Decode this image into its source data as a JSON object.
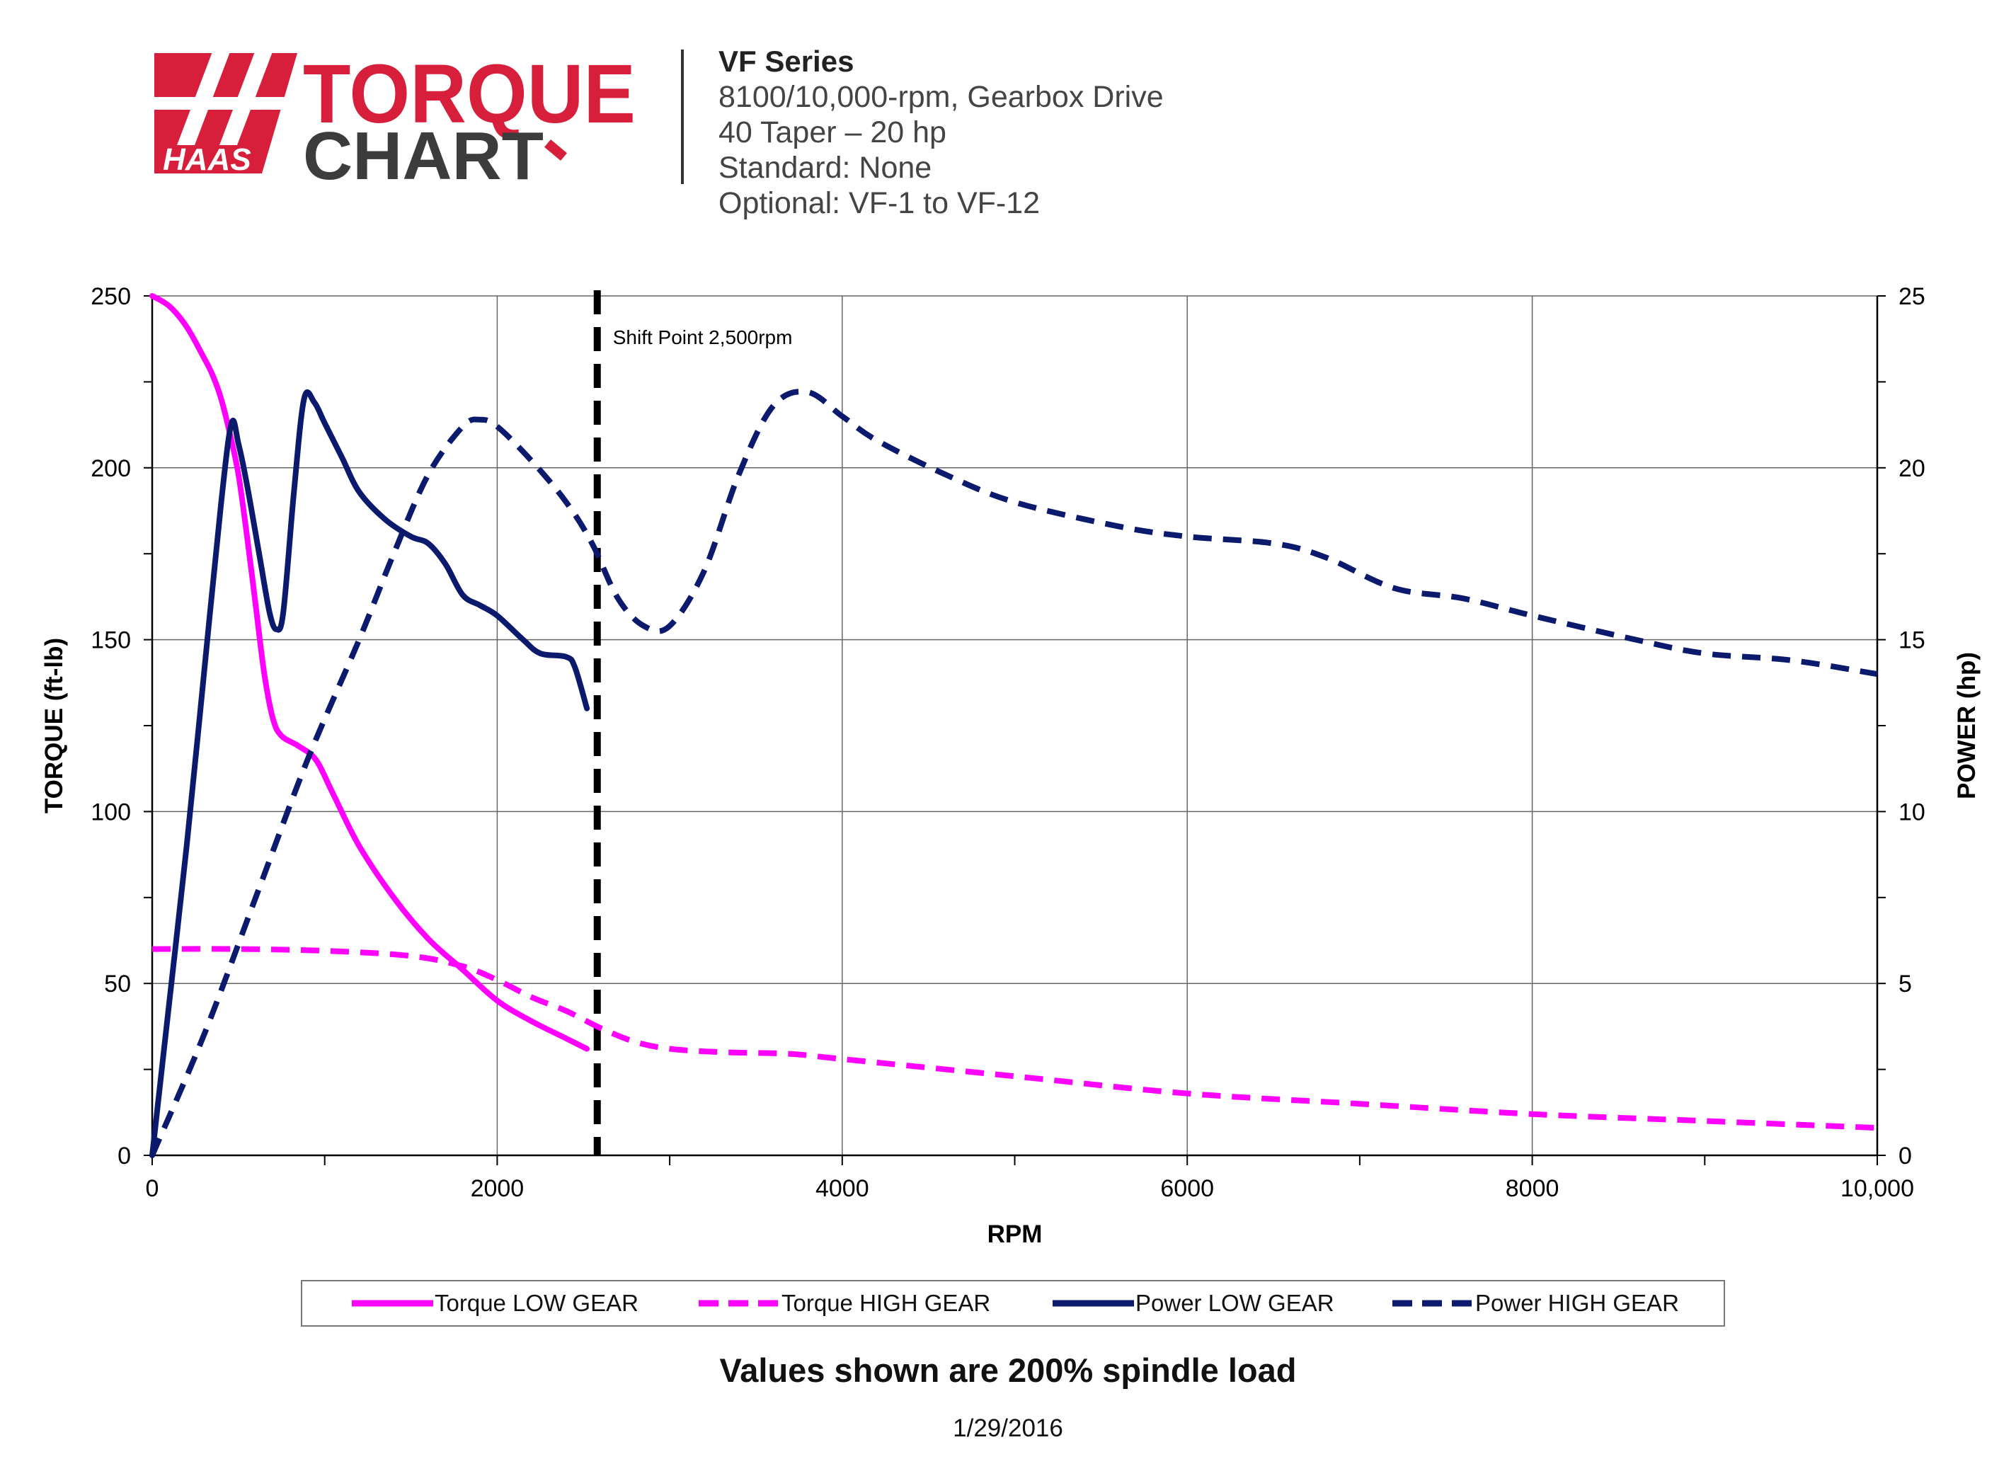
{
  "header": {
    "logo_brand": "HAAS",
    "logo_word1": "TORQUE",
    "logo_word2": "CHART",
    "series": "VF Series",
    "lines": [
      "8100/10,000-rpm, Gearbox Drive",
      "40 Taper – 20 hp",
      "Standard: None",
      "Optional: VF-1 to VF-12"
    ]
  },
  "colors": {
    "magenta": "#ff00ff",
    "navy": "#0c1a6e",
    "logo_red": "#d71f3c",
    "logo_gray": "#3c3c3c"
  },
  "footnote": "Values shown are 200% spindle load",
  "date": "1/29/2016",
  "chart_data": {
    "type": "line",
    "xlabel": "RPM",
    "ylabel": "TORQUE (ft-lb)",
    "y2label": "POWER (hp)",
    "xlim": [
      0,
      10000
    ],
    "ylim": [
      0,
      250
    ],
    "y2lim": [
      0,
      25
    ],
    "x_ticks": [
      0,
      2000,
      4000,
      6000,
      8000,
      10000
    ],
    "x_tick_labels": [
      "0",
      "2000",
      "4000",
      "6000",
      "8000",
      "10,000"
    ],
    "y_ticks": [
      0,
      50,
      100,
      150,
      200,
      250
    ],
    "y_tick_labels": [
      "0",
      "50",
      "100",
      "150",
      "200",
      "250"
    ],
    "y2_ticks": [
      0,
      5,
      10,
      15,
      20,
      25
    ],
    "y2_tick_labels": [
      "0",
      "5",
      "10",
      "15",
      "20",
      "25"
    ],
    "grid": true,
    "legend_position": "bottom",
    "annotation": {
      "label": "Shift Point 2,500rpm",
      "x": 2580
    },
    "series": [
      {
        "name": "Torque LOW GEAR",
        "axis": "left",
        "style": "solid",
        "color": "#ff00ff",
        "points": [
          [
            0,
            250
          ],
          [
            100,
            247
          ],
          [
            200,
            241
          ],
          [
            300,
            232
          ],
          [
            350,
            227
          ],
          [
            400,
            220
          ],
          [
            450,
            210
          ],
          [
            500,
            198
          ],
          [
            550,
            180
          ],
          [
            600,
            160
          ],
          [
            650,
            140
          ],
          [
            700,
            127
          ],
          [
            750,
            122
          ],
          [
            850,
            119
          ],
          [
            950,
            115
          ],
          [
            1050,
            105
          ],
          [
            1200,
            90
          ],
          [
            1400,
            75
          ],
          [
            1600,
            63
          ],
          [
            1800,
            54
          ],
          [
            2000,
            45
          ],
          [
            2200,
            39
          ],
          [
            2400,
            34
          ],
          [
            2520,
            31
          ]
        ]
      },
      {
        "name": "Torque HIGH GEAR",
        "axis": "left",
        "style": "dashed",
        "color": "#ff00ff",
        "points": [
          [
            0,
            60
          ],
          [
            500,
            60
          ],
          [
            1000,
            59.5
          ],
          [
            1500,
            58
          ],
          [
            1800,
            55
          ],
          [
            2000,
            51
          ],
          [
            2200,
            46
          ],
          [
            2400,
            42
          ],
          [
            2600,
            37
          ],
          [
            2800,
            33
          ],
          [
            3000,
            31
          ],
          [
            3300,
            30
          ],
          [
            3700,
            29.5
          ],
          [
            4000,
            28
          ],
          [
            5000,
            23
          ],
          [
            6000,
            18
          ],
          [
            7000,
            15
          ],
          [
            8000,
            12
          ],
          [
            9000,
            10
          ],
          [
            10000,
            8
          ]
        ]
      },
      {
        "name": "Power LOW GEAR",
        "axis": "right",
        "style": "solid",
        "color": "#0c1a6e",
        "points": [
          [
            0,
            0
          ],
          [
            100,
            4.5
          ],
          [
            200,
            9
          ],
          [
            300,
            14
          ],
          [
            400,
            19
          ],
          [
            460,
            21.3
          ],
          [
            500,
            20.7
          ],
          [
            550,
            19.5
          ],
          [
            620,
            17.5
          ],
          [
            680,
            15.8
          ],
          [
            720,
            15.3
          ],
          [
            760,
            15.8
          ],
          [
            820,
            19.2
          ],
          [
            880,
            22
          ],
          [
            940,
            21.9
          ],
          [
            1000,
            21.3
          ],
          [
            1100,
            20.3
          ],
          [
            1200,
            19.3
          ],
          [
            1350,
            18.5
          ],
          [
            1500,
            18
          ],
          [
            1600,
            17.8
          ],
          [
            1700,
            17.2
          ],
          [
            1800,
            16.3
          ],
          [
            1900,
            16
          ],
          [
            2000,
            15.7
          ],
          [
            2150,
            15
          ],
          [
            2250,
            14.6
          ],
          [
            2400,
            14.5
          ],
          [
            2450,
            14.2
          ],
          [
            2520,
            13
          ]
        ]
      },
      {
        "name": "Power HIGH GEAR",
        "axis": "right",
        "style": "dashed",
        "color": "#0c1a6e",
        "points": [
          [
            0,
            0
          ],
          [
            300,
            3.5
          ],
          [
            600,
            7.5
          ],
          [
            900,
            11.5
          ],
          [
            1200,
            15
          ],
          [
            1400,
            17.5
          ],
          [
            1600,
            19.8
          ],
          [
            1800,
            21.2
          ],
          [
            1900,
            21.4
          ],
          [
            2000,
            21.2
          ],
          [
            2200,
            20.2
          ],
          [
            2400,
            19
          ],
          [
            2550,
            17.8
          ],
          [
            2700,
            16.2
          ],
          [
            2850,
            15.4
          ],
          [
            3000,
            15.4
          ],
          [
            3200,
            17
          ],
          [
            3400,
            19.8
          ],
          [
            3600,
            21.8
          ],
          [
            3800,
            22.2
          ],
          [
            4000,
            21.5
          ],
          [
            4200,
            20.8
          ],
          [
            4600,
            19.8
          ],
          [
            5000,
            19
          ],
          [
            5600,
            18.3
          ],
          [
            6000,
            18
          ],
          [
            6500,
            17.8
          ],
          [
            6800,
            17.4
          ],
          [
            7200,
            16.5
          ],
          [
            7600,
            16.2
          ],
          [
            8000,
            15.7
          ],
          [
            8600,
            15
          ],
          [
            9000,
            14.6
          ],
          [
            9500,
            14.4
          ],
          [
            10000,
            14
          ]
        ]
      }
    ]
  }
}
